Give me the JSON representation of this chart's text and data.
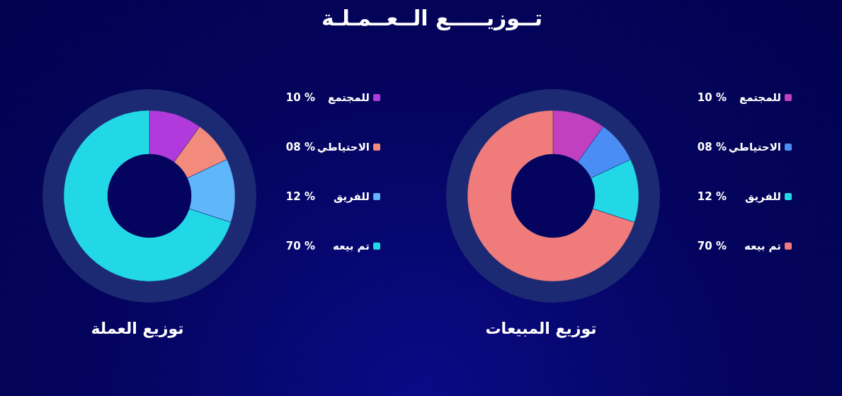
{
  "chart_data": [
    {
      "type": "donut",
      "title": "توزيع العملة",
      "annotations": [
        "تــوزيـــــع الــعــمـلـة"
      ],
      "categories": [
        "للمجتمع",
        "الاحتياطي",
        "للفريق",
        "تم بيعه"
      ],
      "values": [
        10,
        8,
        12,
        70
      ],
      "value_labels": [
        "10 %",
        "08 %",
        "12 %",
        "70 %"
      ],
      "colors": [
        "#b03adb",
        "#f28b7b",
        "#5fb6fa",
        "#22d8e6"
      ],
      "legend": "right"
    },
    {
      "type": "donut",
      "title": "توزيع المبيعات",
      "categories": [
        "للمجتمع",
        "الاحتياطي",
        "للفريق",
        "تم بيعه"
      ],
      "values": [
        10,
        8,
        12,
        70
      ],
      "value_labels": [
        "10 %",
        "08 %",
        "12 %",
        "70 %"
      ],
      "colors": [
        "#c040c0",
        "#4a8ef5",
        "#22d8e6",
        "#f07b7b"
      ],
      "legend": "right"
    }
  ]
}
